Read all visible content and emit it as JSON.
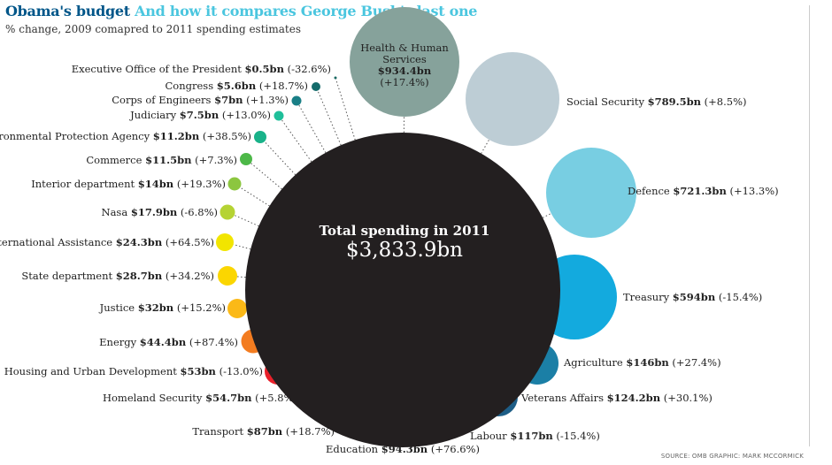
{
  "header": {
    "title_part1": "Obama's budget",
    "title_part2": "And how it compares George Bush's last one",
    "subtitle": "% change, 2009 comapred to 2011 spending estimates"
  },
  "source": "SOURCE: OMB GRAPHIC: MARK MCCORMICK",
  "chart_data": {
    "type": "bubble",
    "center": {
      "label": "Total spending in 2011",
      "value": "$3,833.9bn",
      "color": "#231f20"
    },
    "items": [
      {
        "name": "Executive Office of the President",
        "value": "$0.5bn",
        "change": "(-32.6%)",
        "amount": 0.5,
        "pct": -32.6,
        "color": "#1b6a63"
      },
      {
        "name": "Congress",
        "value": "$5.6bn",
        "change": "(+18.7%)",
        "amount": 5.6,
        "pct": 18.7,
        "color": "#146b6b"
      },
      {
        "name": "Corps of Engineers",
        "value": "$7bn",
        "change": "(+1.3%)",
        "amount": 7,
        "pct": 1.3,
        "color": "#1a7f86"
      },
      {
        "name": "Judiciary",
        "value": "$7.5bn",
        "change": "(+13.0%)",
        "amount": 7.5,
        "pct": 13.0,
        "color": "#1fbf9a"
      },
      {
        "name": "Environmental Protection Agency",
        "value": "$11.2bn",
        "change": "(+38.5%)",
        "amount": 11.2,
        "pct": 38.5,
        "color": "#19b289"
      },
      {
        "name": "Commerce",
        "value": "$11.5bn",
        "change": "(+7.3%)",
        "amount": 11.5,
        "pct": 7.3,
        "color": "#4db848"
      },
      {
        "name": "Interior department",
        "value": "$14bn",
        "change": "(+19.3%)",
        "amount": 14,
        "pct": 19.3,
        "color": "#8cc63f"
      },
      {
        "name": "Nasa",
        "value": "$17.9bn",
        "change": "(-6.8%)",
        "amount": 17.9,
        "pct": -6.8,
        "color": "#b5d334"
      },
      {
        "name": "International Assistance",
        "value": "$24.3bn",
        "change": "(+64.5%)",
        "amount": 24.3,
        "pct": 64.5,
        "color": "#f2e500"
      },
      {
        "name": "State department",
        "value": "$28.7bn",
        "change": "(+34.2%)",
        "amount": 28.7,
        "pct": 34.2,
        "color": "#fbd600"
      },
      {
        "name": "Justice",
        "value": "$32bn",
        "change": "(+15.2%)",
        "amount": 32,
        "pct": 15.2,
        "color": "#fbb917"
      },
      {
        "name": "Energy",
        "value": "$44.4bn",
        "change": "(+87.4%)",
        "amount": 44.4,
        "pct": 87.4,
        "color": "#f37c20"
      },
      {
        "name": "Housing and Urban Development",
        "value": "$53bn",
        "change": "(-13.0%)",
        "amount": 53,
        "pct": -13.0,
        "color": "#e8202a"
      },
      {
        "name": "Homeland Security",
        "value": "$54.7bn",
        "change": "(+5.8%)",
        "amount": 54.7,
        "pct": 5.8,
        "color": "#ec008c"
      },
      {
        "name": "Transport",
        "value": "$87bn",
        "change": "(+18.7%)",
        "amount": 87,
        "pct": 18.7,
        "color": "#c4177a"
      },
      {
        "name": "Education",
        "value": "$94.3bn",
        "change": "(+76.6%)",
        "amount": 94.3,
        "pct": 76.6,
        "color": "#6c2b86"
      },
      {
        "name": "Labour",
        "value": "$117bn",
        "change": "(-15.4%)",
        "amount": 117,
        "pct": -15.4,
        "color": "#2e2a7a"
      },
      {
        "name": "Veterans Affairs",
        "value": "$124.2bn",
        "change": "(+30.1%)",
        "amount": 124.2,
        "pct": 30.1,
        "color": "#1d5d86"
      },
      {
        "name": "Agriculture",
        "value": "$146bn",
        "change": "(+27.4%)",
        "amount": 146,
        "pct": 27.4,
        "color": "#1b7fa6"
      },
      {
        "name": "Treasury",
        "value": "$594bn",
        "change": "(-15.4%)",
        "amount": 594,
        "pct": -15.4,
        "color": "#13aade"
      },
      {
        "name": "Defence",
        "value": "$721.3bn",
        "change": "(+13.3%)",
        "amount": 721.3,
        "pct": 13.3,
        "color": "#78cee2"
      },
      {
        "name": "Social Security",
        "value": "$789.5bn",
        "change": "(+8.5%)",
        "amount": 789.5,
        "pct": 8.5,
        "color": "#bdcdd5"
      },
      {
        "name": "Health & Human Services",
        "value": "$934.4bn",
        "change": "(+17.4%)",
        "amount": 934.4,
        "pct": 17.4,
        "color": "#86a29b"
      }
    ]
  }
}
